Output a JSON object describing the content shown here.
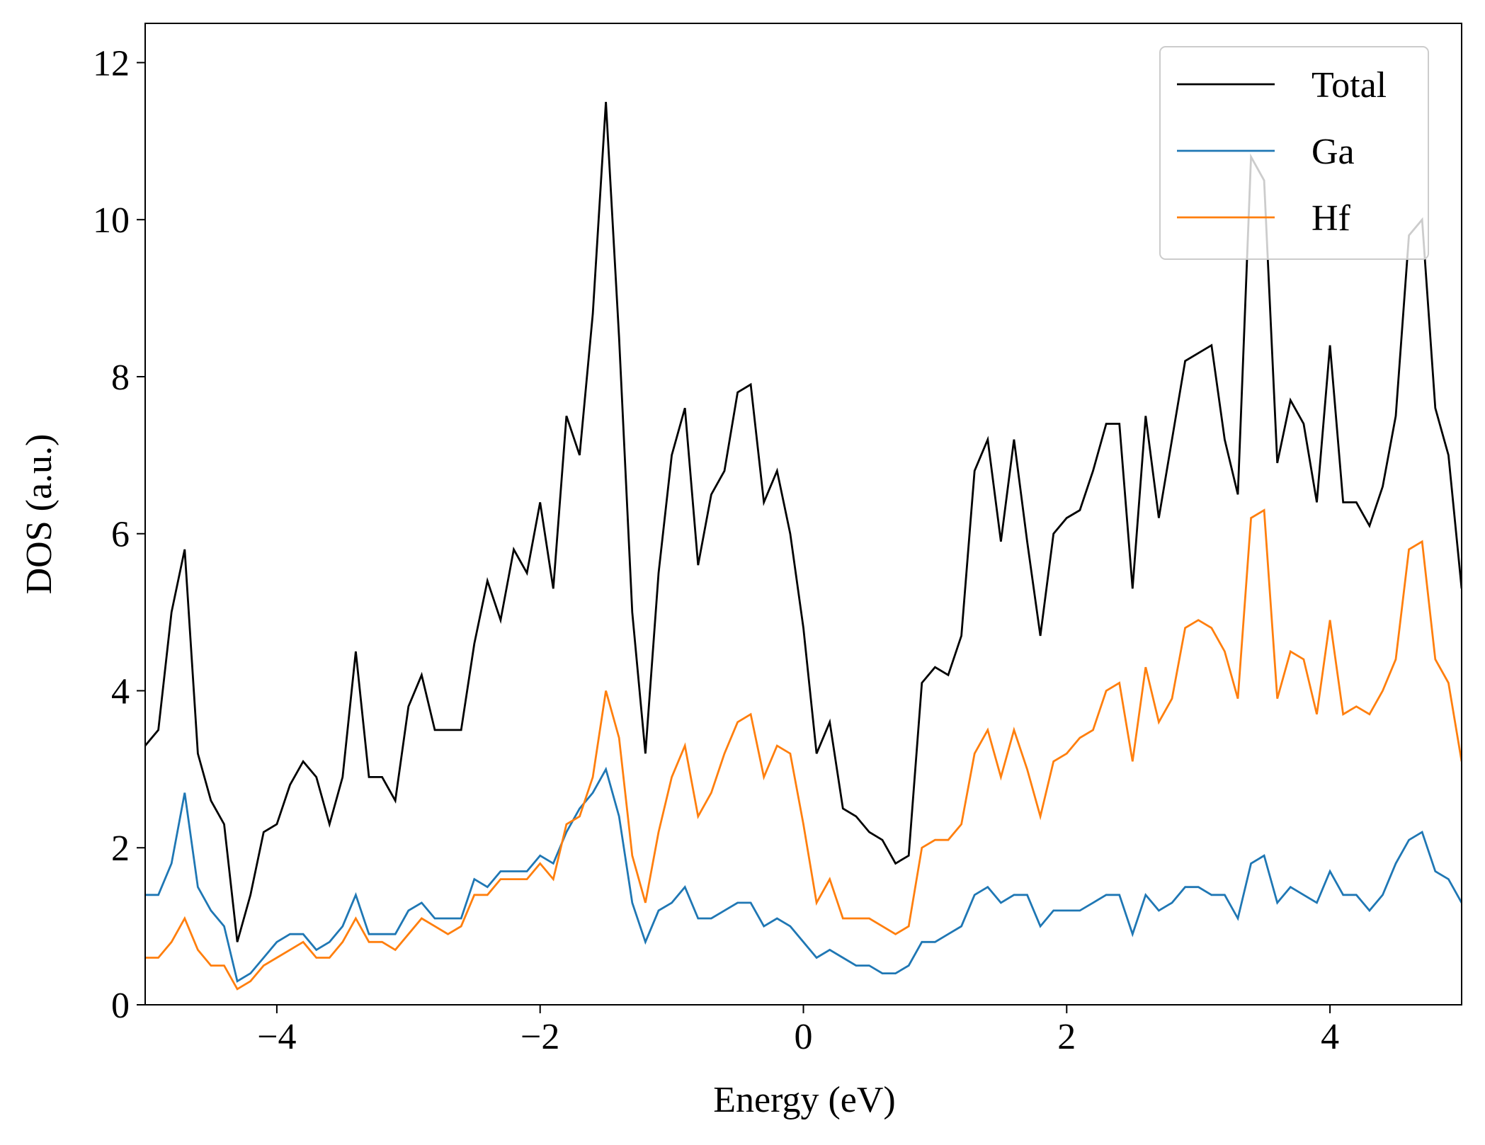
{
  "chart_data": {
    "type": "line",
    "xlabel": "Energy (eV)",
    "ylabel": "DOS (a.u.)",
    "xlim": [
      -5,
      5
    ],
    "ylim": [
      0,
      12.5
    ],
    "xticks": [
      {
        "value": -4,
        "label": "−4"
      },
      {
        "value": -2,
        "label": "−2"
      },
      0,
      2,
      4
    ],
    "yticks": [
      0,
      2,
      4,
      6,
      8,
      10,
      12
    ],
    "legend": "upper right",
    "x": [
      -5.0,
      -4.9,
      -4.8,
      -4.7,
      -4.6,
      -4.5,
      -4.4,
      -4.3,
      -4.2,
      -4.1,
      -4.0,
      -3.9,
      -3.8,
      -3.7,
      -3.6,
      -3.5,
      -3.4,
      -3.3,
      -3.2,
      -3.1,
      -3.0,
      -2.9,
      -2.8,
      -2.7,
      -2.6,
      -2.5,
      -2.4,
      -2.3,
      -2.2,
      -2.1,
      -2.0,
      -1.9,
      -1.8,
      -1.7,
      -1.6,
      -1.5,
      -1.4,
      -1.3,
      -1.2,
      -1.1,
      -1.0,
      -0.9,
      -0.8,
      -0.7,
      -0.6,
      -0.5,
      -0.4,
      -0.3,
      -0.2,
      -0.1,
      0.0,
      0.1,
      0.2,
      0.3,
      0.4,
      0.5,
      0.6,
      0.7,
      0.8,
      0.9,
      1.0,
      1.1,
      1.2,
      1.3,
      1.4,
      1.5,
      1.6,
      1.7,
      1.8,
      1.9,
      2.0,
      2.1,
      2.2,
      2.3,
      2.4,
      2.5,
      2.6,
      2.7,
      2.8,
      2.9,
      3.0,
      3.1,
      3.2,
      3.3,
      3.4,
      3.5,
      3.6,
      3.7,
      3.8,
      3.9,
      4.0,
      4.1,
      4.2,
      4.3,
      4.4,
      4.5,
      4.6,
      4.7,
      4.8,
      4.9,
      5.0
    ],
    "series": [
      {
        "name": "Total",
        "color": "#000000",
        "values": [
          3.3,
          3.5,
          5.0,
          5.8,
          3.2,
          2.6,
          2.3,
          0.8,
          1.4,
          2.2,
          2.3,
          2.8,
          3.1,
          2.9,
          2.3,
          2.9,
          4.5,
          2.9,
          2.9,
          2.6,
          3.8,
          4.2,
          3.5,
          3.5,
          3.5,
          4.6,
          5.4,
          4.9,
          5.8,
          5.5,
          6.4,
          5.3,
          7.5,
          7.0,
          8.8,
          11.5,
          8.5,
          5.0,
          3.2,
          5.5,
          7.0,
          7.6,
          5.6,
          6.5,
          6.8,
          7.8,
          7.9,
          6.4,
          6.8,
          6.0,
          4.8,
          3.2,
          3.6,
          2.5,
          2.4,
          2.2,
          2.1,
          1.8,
          1.9,
          4.1,
          4.3,
          4.2,
          4.7,
          6.8,
          7.2,
          5.9,
          7.2,
          5.9,
          4.7,
          6.0,
          6.2,
          6.3,
          6.8,
          7.4,
          7.4,
          5.3,
          7.5,
          6.2,
          7.2,
          8.2,
          8.3,
          8.4,
          7.2,
          6.5,
          10.8,
          10.5,
          6.9,
          7.7,
          7.4,
          6.4,
          8.4,
          6.4,
          6.4,
          6.1,
          6.6,
          7.5,
          9.8,
          10.0,
          7.6,
          7.0,
          5.3
        ]
      },
      {
        "name": "Ga",
        "color": "#1f77b4",
        "values": [
          1.4,
          1.4,
          1.8,
          2.7,
          1.5,
          1.2,
          1.0,
          0.3,
          0.4,
          0.6,
          0.8,
          0.9,
          0.9,
          0.7,
          0.8,
          1.0,
          1.4,
          0.9,
          0.9,
          0.9,
          1.2,
          1.3,
          1.1,
          1.1,
          1.1,
          1.6,
          1.5,
          1.7,
          1.7,
          1.7,
          1.9,
          1.8,
          2.2,
          2.5,
          2.7,
          3.0,
          2.4,
          1.3,
          0.8,
          1.2,
          1.3,
          1.5,
          1.1,
          1.1,
          1.2,
          1.3,
          1.3,
          1.0,
          1.1,
          1.0,
          0.8,
          0.6,
          0.7,
          0.6,
          0.5,
          0.5,
          0.4,
          0.4,
          0.5,
          0.8,
          0.8,
          0.9,
          1.0,
          1.4,
          1.5,
          1.3,
          1.4,
          1.4,
          1.0,
          1.2,
          1.2,
          1.2,
          1.3,
          1.4,
          1.4,
          0.9,
          1.4,
          1.2,
          1.3,
          1.5,
          1.5,
          1.4,
          1.4,
          1.1,
          1.8,
          1.9,
          1.3,
          1.5,
          1.4,
          1.3,
          1.7,
          1.4,
          1.4,
          1.2,
          1.4,
          1.8,
          2.1,
          2.2,
          1.7,
          1.6,
          1.3
        ]
      },
      {
        "name": "Hf",
        "color": "#ff7f0e",
        "values": [
          0.6,
          0.6,
          0.8,
          1.1,
          0.7,
          0.5,
          0.5,
          0.2,
          0.3,
          0.5,
          0.6,
          0.7,
          0.8,
          0.6,
          0.6,
          0.8,
          1.1,
          0.8,
          0.8,
          0.7,
          0.9,
          1.1,
          1.0,
          0.9,
          1.0,
          1.4,
          1.4,
          1.6,
          1.6,
          1.6,
          1.8,
          1.6,
          2.3,
          2.4,
          2.9,
          4.0,
          3.4,
          1.9,
          1.3,
          2.2,
          2.9,
          3.3,
          2.4,
          2.7,
          3.2,
          3.6,
          3.7,
          2.9,
          3.3,
          3.2,
          2.3,
          1.3,
          1.6,
          1.1,
          1.1,
          1.1,
          1.0,
          0.9,
          1.0,
          2.0,
          2.1,
          2.1,
          2.3,
          3.2,
          3.5,
          2.9,
          3.5,
          3.0,
          2.4,
          3.1,
          3.2,
          3.4,
          3.5,
          4.0,
          4.1,
          3.1,
          4.3,
          3.6,
          3.9,
          4.8,
          4.9,
          4.8,
          4.5,
          3.9,
          6.2,
          6.3,
          3.9,
          4.5,
          4.4,
          3.7,
          4.9,
          3.7,
          3.8,
          3.7,
          4.0,
          4.4,
          5.8,
          5.9,
          4.4,
          4.1,
          3.1
        ]
      }
    ]
  }
}
